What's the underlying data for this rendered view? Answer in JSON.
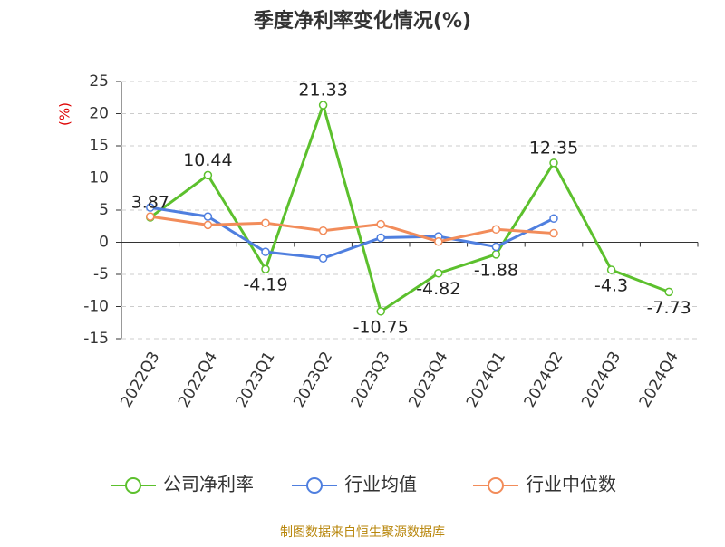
{
  "chart_data": {
    "type": "line",
    "title": "季度净利率变化情况(%)",
    "y_label": "(%)",
    "categories": [
      "2022Q3",
      "2022Q4",
      "2023Q1",
      "2023Q2",
      "2023Q3",
      "2023Q4",
      "2024Q1",
      "2024Q2",
      "2024Q3",
      "2024Q4"
    ],
    "series": [
      {
        "name": "公司净利率",
        "color": "#5cc02d",
        "values": [
          3.87,
          10.44,
          -4.19,
          21.33,
          -10.75,
          -4.82,
          -1.88,
          12.35,
          -4.3,
          -7.73
        ],
        "labels": true
      },
      {
        "name": "行业均值",
        "color": "#4f7fdf",
        "values": [
          5.4,
          4.0,
          -1.5,
          -2.5,
          0.7,
          0.9,
          -0.7,
          3.7,
          null,
          null
        ]
      },
      {
        "name": "行业中位数",
        "color": "#f28c5a",
        "values": [
          4.0,
          2.7,
          3.0,
          1.8,
          2.8,
          0.1,
          2.0,
          1.4,
          null,
          null
        ]
      }
    ],
    "ylim": [
      -15,
      25
    ],
    "yticks": [
      -15,
      -10,
      -5,
      0,
      5,
      10,
      15,
      20,
      25
    ],
    "grid": true,
    "source": "制图数据来自恒生聚源数据库"
  }
}
